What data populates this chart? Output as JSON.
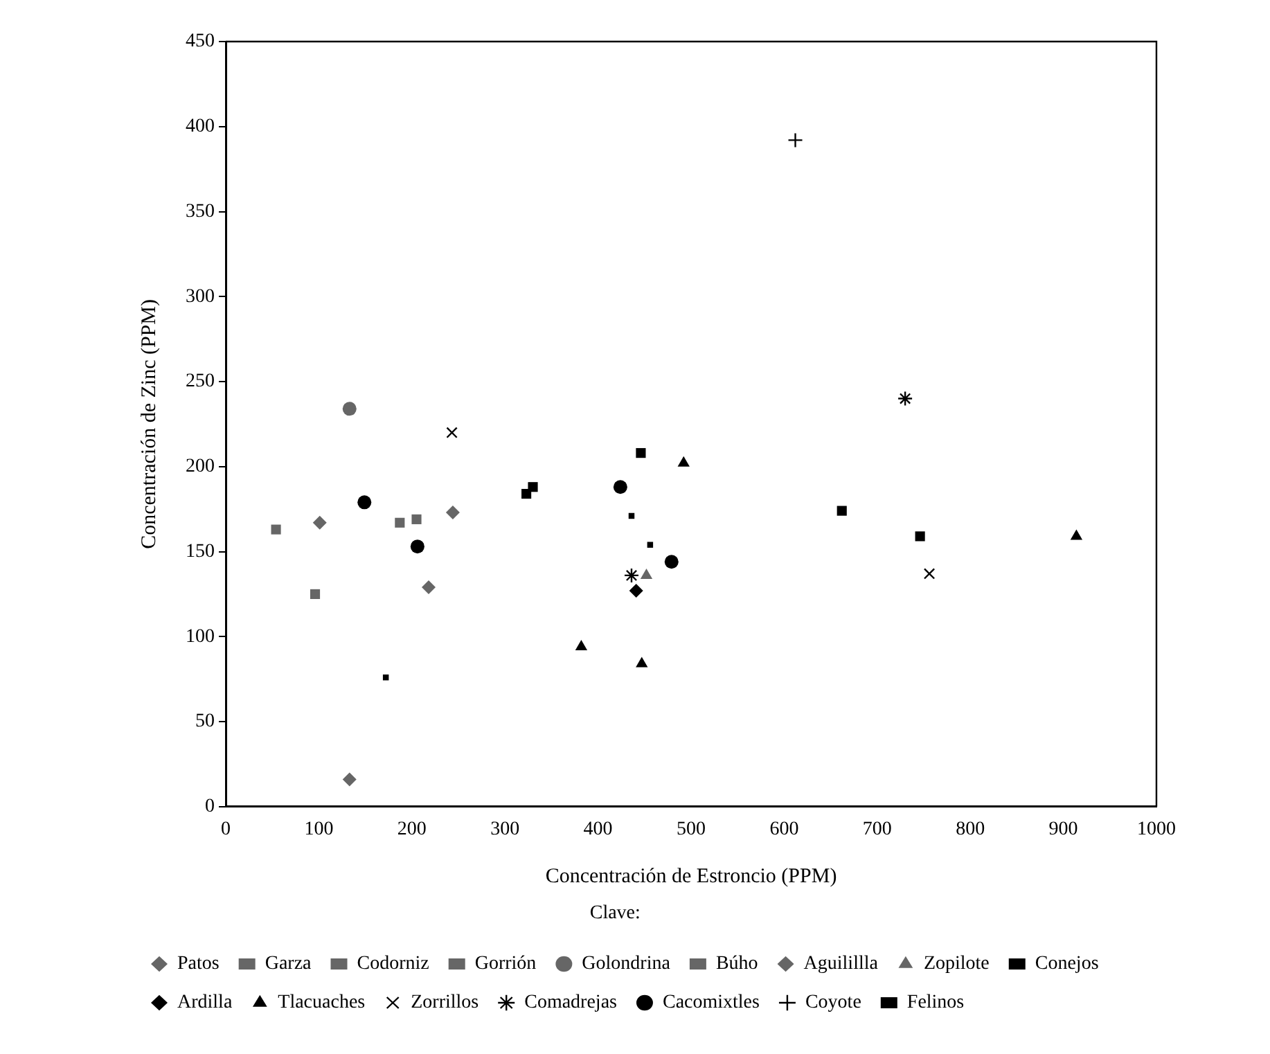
{
  "chart_data": {
    "type": "scatter",
    "xlabel": "Concentración de Estroncio (PPM)",
    "ylabel": "Concentración de Zinc (PPM)",
    "legend_title": "Clave:",
    "legend": "bottom",
    "grid": false,
    "xlim": [
      0,
      1000
    ],
    "xticks": [
      0,
      100,
      200,
      300,
      400,
      500,
      600,
      700,
      800,
      900,
      1000
    ],
    "ylim": [
      0,
      450
    ],
    "yticks": [
      0,
      50,
      100,
      150,
      200,
      250,
      300,
      350,
      400,
      450
    ],
    "series": [
      {
        "name": "Patos",
        "color": "#666666",
        "marker": "diamond",
        "x": [
          133,
          218,
          244
        ],
        "values": [
          16,
          129,
          173
        ]
      },
      {
        "name": "Garza",
        "color": "#666666",
        "marker": "square",
        "x": [
          96
        ],
        "values": [
          125
        ]
      },
      {
        "name": "Codorniz",
        "color": "#666666",
        "marker": "square",
        "x": [
          54
        ],
        "values": [
          163
        ]
      },
      {
        "name": "Gorrión",
        "color": "#666666",
        "marker": "square",
        "x": [
          187
        ],
        "values": [
          167
        ]
      },
      {
        "name": "Golondrina",
        "color": "#666666",
        "marker": "circle",
        "x": [
          133
        ],
        "values": [
          234
        ]
      },
      {
        "name": "Búho",
        "color": "#666666",
        "marker": "square",
        "x": [
          205
        ],
        "values": [
          169
        ]
      },
      {
        "name": "Aguilillla",
        "color": "#666666",
        "marker": "diamond",
        "x": [
          101
        ],
        "values": [
          167
        ]
      },
      {
        "name": "Zopilote",
        "color": "#666666",
        "marker": "triangle",
        "x": [
          452
        ],
        "values": [
          136
        ]
      },
      {
        "name": "Conejos",
        "color": "#000000",
        "marker": "square",
        "x": [
          323,
          330,
          446,
          662,
          746
        ],
        "values": [
          184,
          188,
          208,
          174,
          159
        ]
      },
      {
        "name": "Ardilla",
        "color": "#000000",
        "marker": "diamond",
        "x": [
          441
        ],
        "values": [
          127
        ]
      },
      {
        "name": "Tlacuaches",
        "color": "#000000",
        "marker": "triangle",
        "x": [
          382,
          447,
          492,
          914
        ],
        "values": [
          94,
          84,
          202,
          159
        ]
      },
      {
        "name": "Zorrillos",
        "color": "#000000",
        "marker": "x",
        "x": [
          243,
          756
        ],
        "values": [
          220,
          137
        ]
      },
      {
        "name": "Comadrejas",
        "color": "#000000",
        "marker": "cross",
        "x": [
          436,
          730
        ],
        "values": [
          136,
          240
        ]
      },
      {
        "name": "Cacomixtles",
        "color": "#000000",
        "marker": "circle",
        "x": [
          149,
          206,
          424,
          479
        ],
        "values": [
          179,
          153,
          188,
          144
        ]
      },
      {
        "name": "Coyote",
        "color": "#000000",
        "marker": "cross",
        "x": [
          612
        ],
        "values": [
          392
        ]
      },
      {
        "name": "Felinos",
        "color": "#000000",
        "marker": "square",
        "x": [
          172,
          436,
          456
        ],
        "values": [
          76,
          171,
          154
        ]
      }
    ]
  }
}
